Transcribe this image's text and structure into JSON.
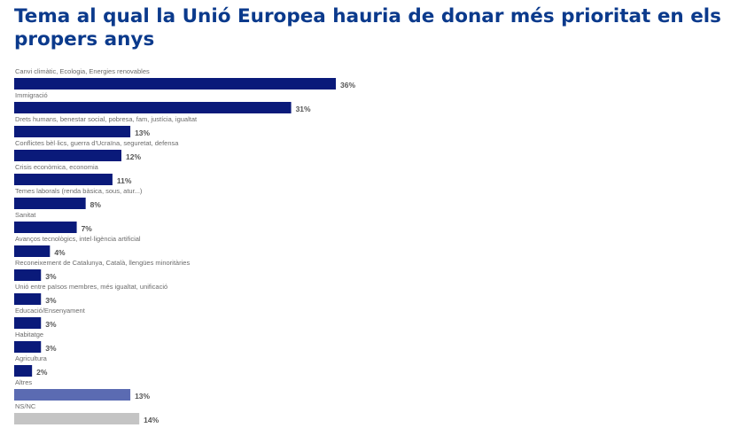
{
  "title": "Tema al qual la Unió Europea hauria de donar més prioritat en els propers anys",
  "colors": {
    "title": "#0b3a8c",
    "primary_bar": "#0a1a7a",
    "others_bar": "#5b6bb2",
    "nsnc_bar": "#c4c4c4"
  },
  "chart_data": {
    "type": "bar",
    "orientation": "horizontal",
    "title": "Tema al qual la Unió Europea hauria de donar més prioritat en els propers anys",
    "xlabel": "",
    "ylabel": "",
    "unit": "%",
    "xlim": [
      0,
      36
    ],
    "grid": false,
    "legend": "none",
    "categories": [
      "Canvi climàtic, Ecologia, Energies renovables",
      "Immigració",
      "Drets humans, benestar social, pobresa, fam, justícia, igualtat",
      "Conflictes bèl·lics, guerra d'Ucraïna, seguretat, defensa",
      "Crisis econòmica, economia",
      "Temes laborals (renda bàsica, sous, atur...)",
      "Sanitat",
      "Avanços tecnològics, intel·ligència artificial",
      "Reconeixement de Catalunya, Català, llengües minoritàries",
      "Unió entre països membres, més igualtat, unificació",
      "Educació/Ensenyament",
      "Habitatge",
      "Agricultura",
      "Altres",
      "NS/NC"
    ],
    "values": [
      36,
      31,
      13,
      12,
      11,
      8,
      7,
      4,
      3,
      3,
      3,
      3,
      2,
      13,
      14
    ],
    "value_labels": [
      "36%",
      "31%",
      "13%",
      "12%",
      "11%",
      "8%",
      "7%",
      "4%",
      "3%",
      "3%",
      "3%",
      "3%",
      "2%",
      "13%",
      "14%"
    ],
    "bar_colors": [
      "primary",
      "primary",
      "primary",
      "primary",
      "primary",
      "primary",
      "primary",
      "primary",
      "primary",
      "primary",
      "primary",
      "primary",
      "primary",
      "others",
      "nsnc"
    ]
  }
}
